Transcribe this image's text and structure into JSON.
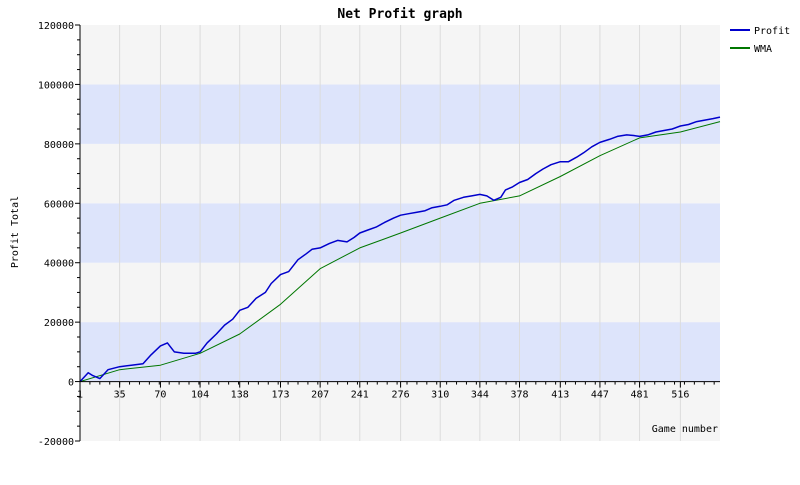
{
  "chart_data": {
    "type": "line",
    "title": "Net Profit graph",
    "xlabel": "Game number",
    "ylabel": "Profit Total",
    "xlim": [
      1,
      550
    ],
    "ylim": [
      -20000,
      120000
    ],
    "x_ticks": [
      1,
      35,
      70,
      104,
      138,
      173,
      207,
      241,
      276,
      310,
      344,
      378,
      413,
      447,
      481,
      516
    ],
    "x_tick_labels": [
      "1",
      "35",
      "70",
      "104",
      "138",
      "173",
      "207",
      "241",
      "276",
      "310",
      "344",
      "378",
      "413",
      "447",
      "481",
      "516"
    ],
    "y_ticks": [
      -20000,
      0,
      20000,
      40000,
      60000,
      80000,
      100000,
      120000
    ],
    "y_tick_labels": [
      "-20000",
      "0",
      "20000",
      "40000",
      "60000",
      "80000",
      "100000",
      "120000"
    ],
    "grid": true,
    "legend_position": "top-right",
    "background_bands": {
      "shaded": "#dde4fb",
      "plain": "#f5f5f5"
    },
    "series": [
      {
        "name": "Profit",
        "color": "#0000cc",
        "x": [
          1,
          8,
          12,
          18,
          25,
          35,
          45,
          55,
          62,
          70,
          76,
          82,
          90,
          100,
          104,
          110,
          118,
          125,
          132,
          138,
          145,
          152,
          160,
          165,
          173,
          180,
          188,
          195,
          200,
          207,
          215,
          222,
          230,
          236,
          241,
          248,
          255,
          262,
          270,
          276,
          283,
          290,
          297,
          303,
          310,
          316,
          322,
          330,
          337,
          344,
          350,
          356,
          362,
          366,
          372,
          378,
          385,
          392,
          398,
          405,
          413,
          420,
          427,
          433,
          440,
          447,
          455,
          462,
          470,
          476,
          481,
          488,
          495,
          502,
          509,
          516,
          523,
          530,
          537,
          544,
          550
        ],
        "y": [
          0,
          3000,
          2000,
          1000,
          4000,
          5000,
          5500,
          6000,
          9000,
          12000,
          13000,
          10000,
          9500,
          9500,
          10000,
          13000,
          16000,
          19000,
          21000,
          24000,
          25000,
          28000,
          30000,
          33000,
          36000,
          37000,
          41000,
          43000,
          44500,
          45000,
          46500,
          47500,
          47000,
          48500,
          50000,
          51000,
          52000,
          53500,
          55000,
          56000,
          56500,
          57000,
          57500,
          58500,
          59000,
          59500,
          61000,
          62000,
          62500,
          63000,
          62500,
          61000,
          62000,
          64500,
          65500,
          67000,
          68000,
          70000,
          71500,
          73000,
          74000,
          74000,
          75500,
          77000,
          79000,
          80500,
          81500,
          82500,
          83000,
          82800,
          82500,
          83000,
          84000,
          84500,
          85000,
          86000,
          86500,
          87500,
          88000,
          88500,
          89000
        ]
      },
      {
        "name": "WMA",
        "color": "#007700",
        "x": [
          1,
          35,
          70,
          104,
          138,
          173,
          207,
          241,
          276,
          310,
          344,
          378,
          413,
          447,
          481,
          516,
          550
        ],
        "y": [
          0,
          4000,
          5500,
          9500,
          16000,
          26000,
          38000,
          45000,
          50000,
          55000,
          60000,
          62500,
          69000,
          76000,
          82000,
          84000,
          87500
        ]
      }
    ]
  }
}
